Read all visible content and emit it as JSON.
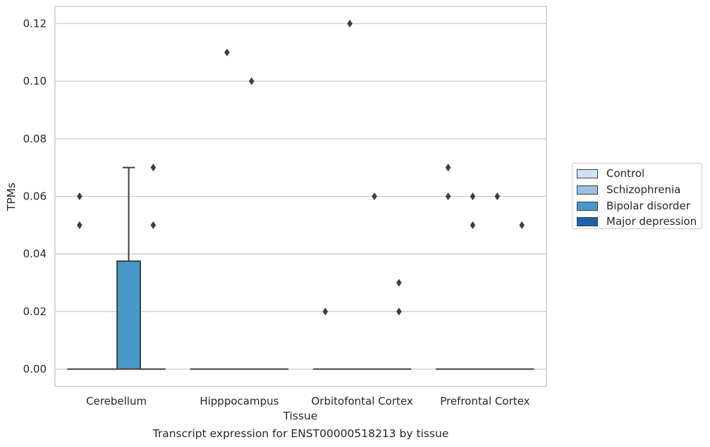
{
  "caption": "Transcript expression for ENST00000518213 by tissue",
  "colors": {
    "Control": "#d0e1f2",
    "Schizophrenia": "#94c4df",
    "Bipolar disorder": "#4a98c9",
    "Major depression": "#1764ab",
    "outline": "#3d3d3d",
    "grid": "#cccccc"
  },
  "chart_data": {
    "type": "box",
    "title": "",
    "xlabel": "Tissue",
    "ylabel": "TPMs",
    "ylim": [
      -0.006,
      0.126
    ],
    "yticks": [
      0.0,
      0.02,
      0.04,
      0.06,
      0.08,
      0.1,
      0.12
    ],
    "ytick_labels": [
      "0.00",
      "0.02",
      "0.04",
      "0.06",
      "0.08",
      "0.10",
      "0.12"
    ],
    "grid": true,
    "legend_position": "right",
    "categories": [
      "Cerebellum",
      "Hipppocampus",
      "Orbitofontal Cortex",
      "Prefrontal Cortex"
    ],
    "series": [
      {
        "name": "Control",
        "boxes": [
          {
            "q1": 0,
            "median": 0,
            "q3": 0,
            "whisker_low": 0,
            "whisker_high": 0,
            "outliers": [
              0.05,
              0.06
            ]
          },
          {
            "q1": 0,
            "median": 0,
            "q3": 0,
            "whisker_low": 0,
            "whisker_high": 0,
            "outliers": []
          },
          {
            "q1": 0,
            "median": 0,
            "q3": 0,
            "whisker_low": 0,
            "whisker_high": 0,
            "outliers": [
              0.02
            ]
          },
          {
            "q1": 0,
            "median": 0,
            "q3": 0,
            "whisker_low": 0,
            "whisker_high": 0,
            "outliers": [
              0.06,
              0.07
            ]
          }
        ]
      },
      {
        "name": "Schizophrenia",
        "boxes": [
          {
            "q1": 0,
            "median": 0,
            "q3": 0,
            "whisker_low": 0,
            "whisker_high": 0,
            "outliers": []
          },
          {
            "q1": 0,
            "median": 0,
            "q3": 0,
            "whisker_low": 0,
            "whisker_high": 0,
            "outliers": [
              0.11
            ]
          },
          {
            "q1": 0,
            "median": 0,
            "q3": 0,
            "whisker_low": 0,
            "whisker_high": 0,
            "outliers": [
              0.12
            ]
          },
          {
            "q1": 0,
            "median": 0,
            "q3": 0,
            "whisker_low": 0,
            "whisker_high": 0,
            "outliers": [
              0.05,
              0.06
            ]
          }
        ]
      },
      {
        "name": "Bipolar disorder",
        "boxes": [
          {
            "q1": 0,
            "median": 0,
            "q3": 0.0375,
            "whisker_low": 0,
            "whisker_high": 0.07,
            "outliers": []
          },
          {
            "q1": 0,
            "median": 0,
            "q3": 0,
            "whisker_low": 0,
            "whisker_high": 0,
            "outliers": [
              0.1
            ]
          },
          {
            "q1": 0,
            "median": 0,
            "q3": 0,
            "whisker_low": 0,
            "whisker_high": 0,
            "outliers": [
              0.06
            ]
          },
          {
            "q1": 0,
            "median": 0,
            "q3": 0,
            "whisker_low": 0,
            "whisker_high": 0,
            "outliers": [
              0.06
            ]
          }
        ]
      },
      {
        "name": "Major depression",
        "boxes": [
          {
            "q1": 0,
            "median": 0,
            "q3": 0,
            "whisker_low": 0,
            "whisker_high": 0,
            "outliers": [
              0.05,
              0.07
            ]
          },
          {
            "q1": 0,
            "median": 0,
            "q3": 0,
            "whisker_low": 0,
            "whisker_high": 0,
            "outliers": []
          },
          {
            "q1": 0,
            "median": 0,
            "q3": 0,
            "whisker_low": 0,
            "whisker_high": 0,
            "outliers": [
              0.02,
              0.03
            ]
          },
          {
            "q1": 0,
            "median": 0,
            "q3": 0,
            "whisker_low": 0,
            "whisker_high": 0,
            "outliers": [
              0.05
            ]
          }
        ]
      }
    ]
  }
}
